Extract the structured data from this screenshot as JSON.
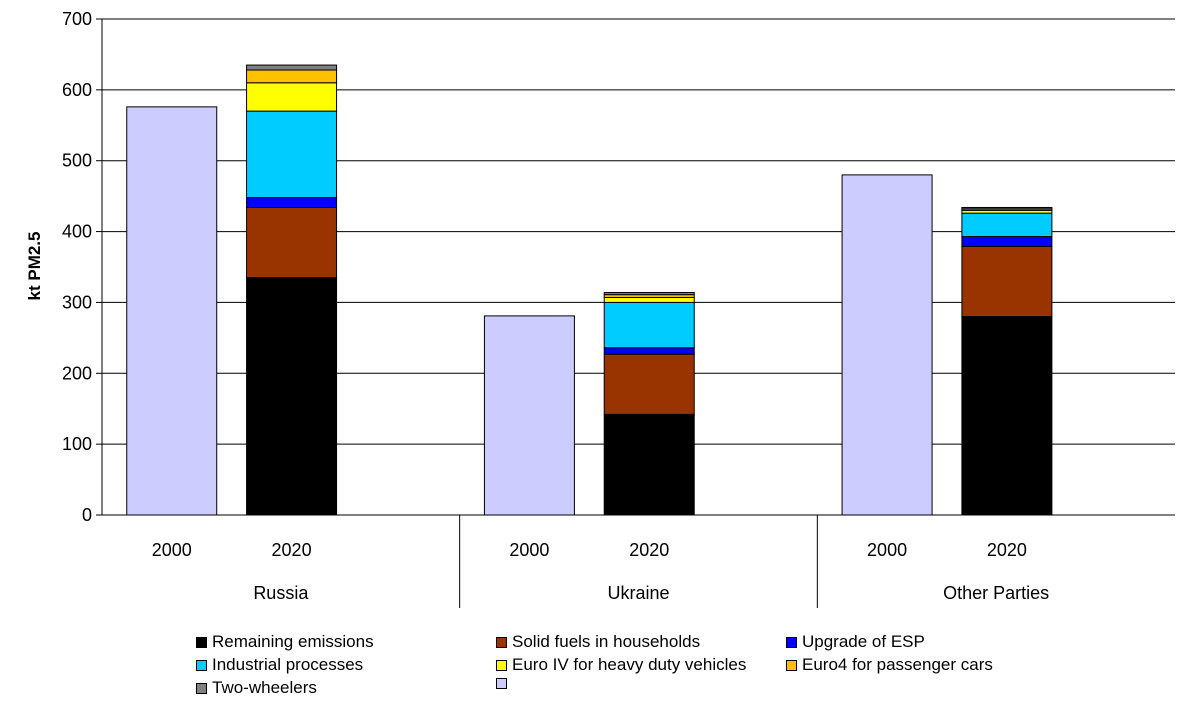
{
  "chart_data": {
    "type": "bar",
    "stacked": true,
    "ylabel": "kt PM2.5",
    "ylim": [
      0,
      700
    ],
    "yticks": [
      0,
      100,
      200,
      300,
      400,
      500,
      600,
      700
    ],
    "grid": true,
    "groups": [
      {
        "name": "Russia",
        "categories": [
          "2000",
          "2020"
        ]
      },
      {
        "name": "Ukraine",
        "categories": [
          "2000",
          "2020"
        ]
      },
      {
        "name": "Other Parties",
        "categories": [
          "2000",
          "2020"
        ]
      }
    ],
    "series": [
      {
        "name": "Remaining emissions",
        "color": "#000000",
        "values": [
          0,
          335,
          0,
          142,
          0,
          280
        ]
      },
      {
        "name": "Solid fuels in households",
        "color": "#993300",
        "values": [
          0,
          99,
          0,
          85,
          0,
          99
        ]
      },
      {
        "name": "Upgrade of ESP",
        "color": "#0000FF",
        "values": [
          0,
          14,
          0,
          9,
          0,
          14
        ]
      },
      {
        "name": "Industrial processes",
        "color": "#00CCFF",
        "values": [
          0,
          122,
          0,
          64,
          0,
          33
        ]
      },
      {
        "name": "Euro IV for heavy duty vehicles",
        "color": "#FFFF00",
        "values": [
          0,
          40,
          0,
          7,
          0,
          4
        ]
      },
      {
        "name": "Euro4 for passenger cars",
        "color": "#FFC000",
        "values": [
          0,
          18,
          0,
          4,
          0,
          2
        ]
      },
      {
        "name": "Two-wheelers",
        "color": "#808080",
        "values": [
          0,
          7,
          0,
          3,
          0,
          2
        ]
      },
      {
        "name": "",
        "color": "#CCCCFF",
        "values": [
          576,
          0,
          281,
          0,
          480,
          0
        ]
      }
    ]
  }
}
